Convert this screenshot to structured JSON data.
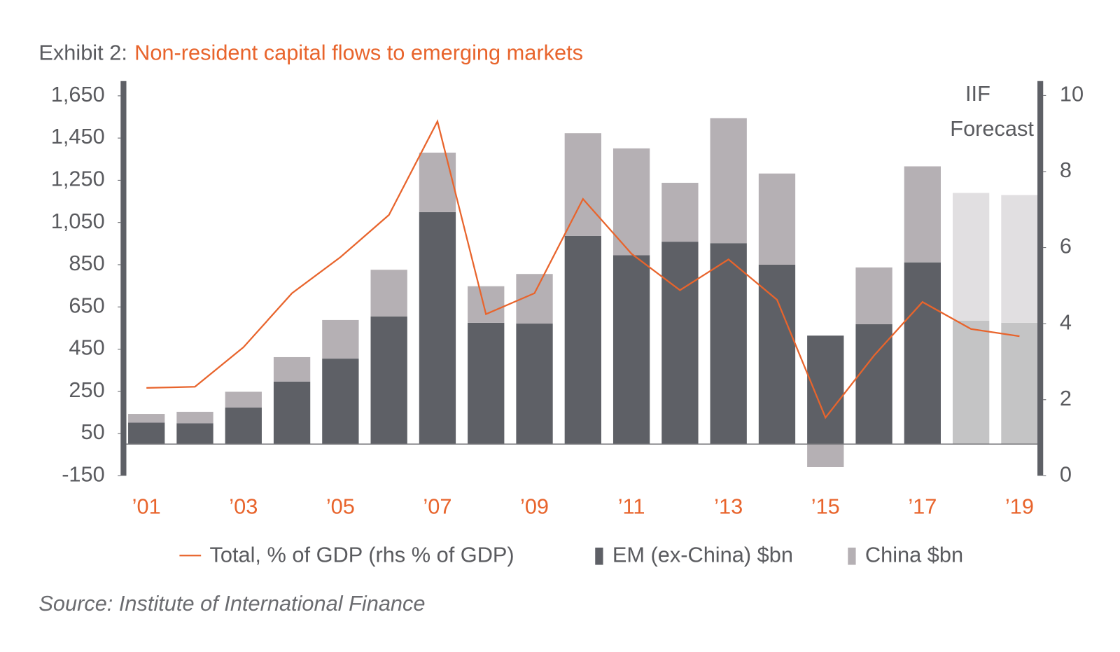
{
  "chart_data": {
    "type": "bar",
    "stacked": true,
    "exhibit": "Exhibit 2:",
    "title": "Non-resident capital flows to emerging markets",
    "source": "Source: Institute of International Finance",
    "annotation": [
      "IIF",
      "Forecast"
    ],
    "categories": [
      "’01",
      null,
      "’03",
      null,
      "’05",
      null,
      "’07",
      null,
      "’09",
      null,
      "’11",
      null,
      "’13",
      null,
      "’15",
      null,
      "’17",
      null,
      "’19"
    ],
    "ylim": [
      -150,
      1720
    ],
    "yticks": [
      {
        "value": 1650,
        "label": "1,650"
      },
      {
        "value": 1450,
        "label": "1,450"
      },
      {
        "value": 1250,
        "label": "1,250"
      },
      {
        "value": 1050,
        "label": "1,050"
      },
      850,
      650,
      450,
      250,
      50,
      -150
    ],
    "y2lim": [
      0,
      10.38
    ],
    "y2ticks": [
      10,
      8,
      6,
      4,
      2,
      0
    ],
    "series": [
      {
        "name": "Total, % of GDP (rhs % of GDP)",
        "type": "line",
        "axis": "y2",
        "color": "#e8642c",
        "values": [
          2.31,
          2.34,
          3.38,
          4.8,
          5.75,
          6.86,
          9.32,
          4.25,
          4.8,
          7.28,
          5.84,
          4.88,
          5.69,
          4.63,
          1.53,
          3.16,
          4.57,
          3.86,
          3.67
        ]
      },
      {
        "name": "EM (ex-China) $bn",
        "type": "bar",
        "color": "#5e6066",
        "colors": [
          "#5e6066",
          "#5e6066",
          "#5e6066",
          "#5e6066",
          "#5e6066",
          "#5e6066",
          "#5e6066",
          "#5e6066",
          "#5e6066",
          "#5e6066",
          "#5e6066",
          "#5e6066",
          "#5e6066",
          "#5e6066",
          "#5e6066",
          "#5e6066",
          "#5e6066",
          "#c4c4c5",
          "#c4c4c5"
        ],
        "values": [
          102,
          99,
          173,
          296,
          405,
          605,
          1099,
          575,
          571,
          986,
          895,
          959,
          952,
          850,
          514,
          568,
          861,
          585,
          575
        ]
      },
      {
        "name": "China $bn",
        "type": "bar",
        "color": "#b5b0b4",
        "colors": [
          "#b5b0b4",
          "#b5b0b4",
          "#b5b0b4",
          "#b5b0b4",
          "#b5b0b4",
          "#b5b0b4",
          "#b5b0b4",
          "#b5b0b4",
          "#b5b0b4",
          "#b5b0b4",
          "#b5b0b4",
          "#b5b0b4",
          "#b5b0b4",
          "#b5b0b4",
          "#b5b0b4",
          "#b5b0b4",
          "#b5b0b4",
          "#e1dfe1",
          "#e1dfe1"
        ],
        "values": [
          41,
          54,
          75,
          116,
          183,
          221,
          282,
          173,
          235,
          487,
          506,
          279,
          592,
          432,
          -109,
          269,
          455,
          605,
          605
        ]
      }
    ]
  }
}
